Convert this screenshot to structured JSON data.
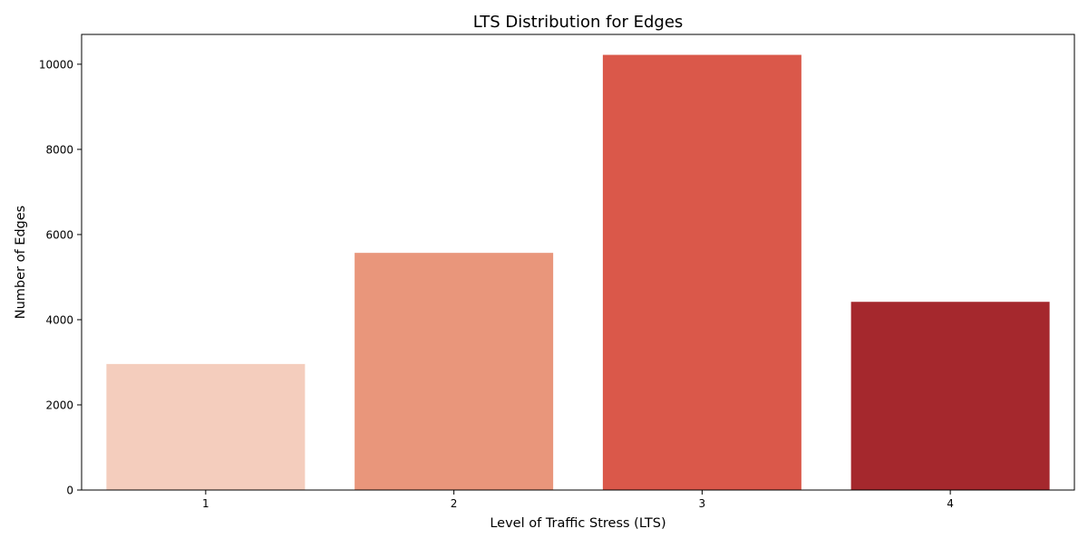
{
  "chart_data": {
    "type": "bar",
    "title": "LTS Distribution for Edges",
    "xlabel": "Level of Traffic Stress (LTS)",
    "ylabel": "Number of Edges",
    "categories": [
      "1",
      "2",
      "3",
      "4"
    ],
    "values": [
      2960,
      5570,
      10220,
      4420
    ],
    "colors": [
      "#f4cdbd",
      "#e9967b",
      "#da584a",
      "#a5282d"
    ],
    "ylim": [
      0,
      10700
    ],
    "yticks": [
      0,
      2000,
      4000,
      6000,
      8000,
      10000
    ],
    "grid": false,
    "legend": "none"
  }
}
